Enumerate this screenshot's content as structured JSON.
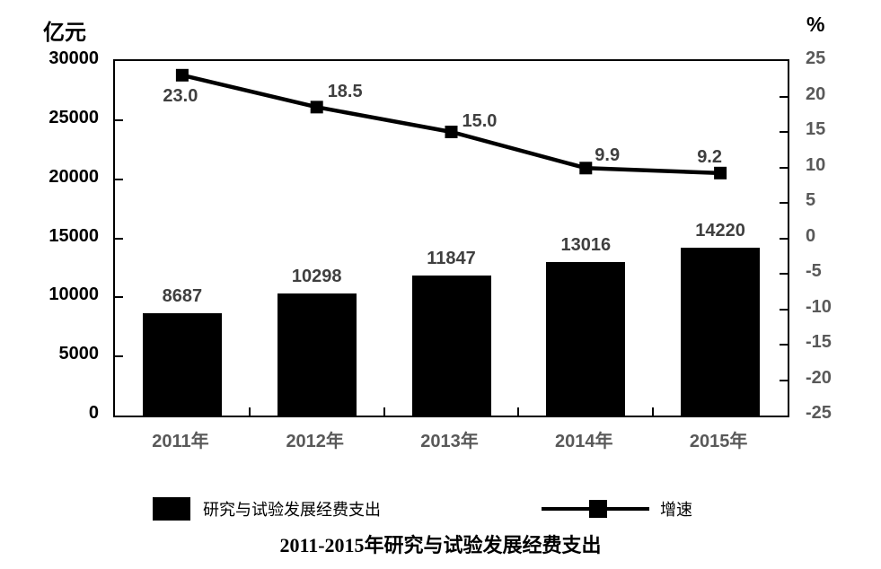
{
  "chart_data": {
    "type": "combo",
    "title": "2011-2015年研究与试验发展经费支出",
    "categories": [
      "2011年",
      "2012年",
      "2013年",
      "2014年",
      "2015年"
    ],
    "series": [
      {
        "name": "研究与试验发展经费支出",
        "type": "bar",
        "axis": "left",
        "values": [
          8687,
          10298,
          11847,
          13016,
          14220
        ]
      },
      {
        "name": "增速",
        "type": "line",
        "axis": "right",
        "values": [
          23.0,
          18.5,
          15.0,
          9.9,
          9.2
        ]
      }
    ],
    "bar_labels": [
      "8687",
      "10298",
      "11847",
      "13016",
      "14220"
    ],
    "line_labels": [
      "23.0",
      "18.5",
      "15.0",
      "9.9",
      "9.2"
    ],
    "left_axis": {
      "unit": "亿元",
      "min": 0,
      "max": 30000,
      "step": 5000,
      "ticks": [
        "30000",
        "25000",
        "20000",
        "15000",
        "10000",
        "5000",
        "0"
      ]
    },
    "right_axis": {
      "unit": "%",
      "min": -25,
      "max": 25,
      "step": 5,
      "ticks": [
        "25",
        "20",
        "15",
        "10",
        "5",
        "0",
        "-5",
        "-10",
        "-15",
        "-20",
        "-25"
      ]
    },
    "legend": [
      {
        "label": "研究与试验发展经费支出",
        "type": "bar"
      },
      {
        "label": "增速",
        "type": "line"
      }
    ],
    "grid": false,
    "legend_position": "bottom"
  },
  "colors": {
    "bar": "#000000",
    "line": "#000000",
    "plot_border": "#000000",
    "left_axis_label": "#000000",
    "secondary_label": "#595959",
    "data_label": "#3f3f3f",
    "background": "#ffffff"
  }
}
